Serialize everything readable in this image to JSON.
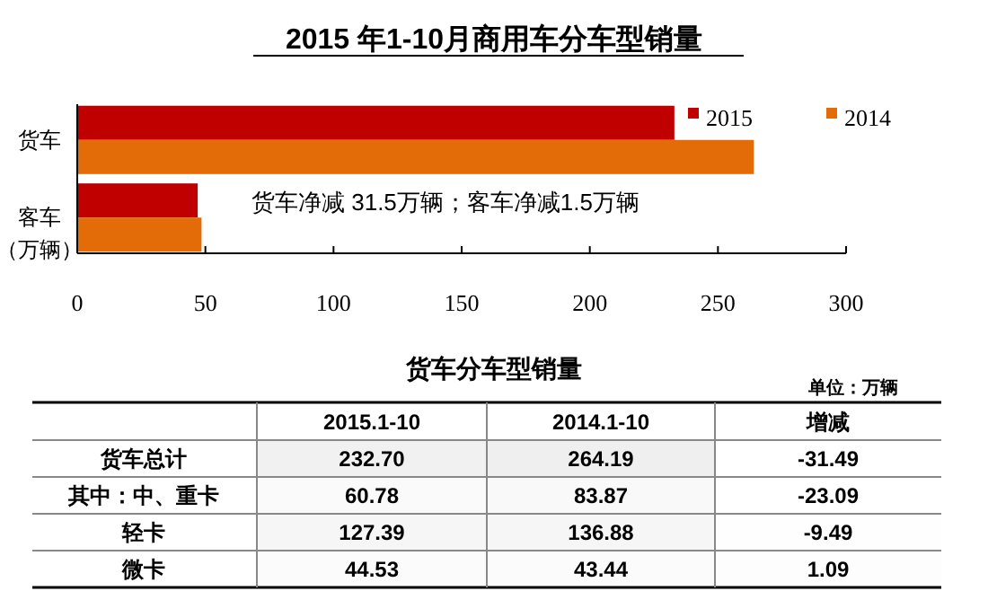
{
  "chart_data": [
    {
      "type": "bar",
      "orientation": "horizontal",
      "title": "2015 年1-10月商用车分车型销量",
      "ylabel": "（万辆）",
      "categories": [
        "货车",
        "客车"
      ],
      "series": [
        {
          "name": "2015",
          "color": "#c00000",
          "values": [
            233,
            47
          ]
        },
        {
          "name": "2014",
          "color": "#e36c09",
          "values": [
            264,
            48.5
          ]
        }
      ],
      "xlim": [
        0,
        300
      ],
      "xticks": [
        0,
        50,
        100,
        150,
        200,
        250,
        300
      ],
      "legend": "top right",
      "grid": false,
      "annotations": [
        "货车净减 31.5万辆；客车净减1.5万辆"
      ]
    },
    {
      "type": "heatmap",
      "title": "货车分车型销量",
      "annotations": [
        "单位：万辆"
      ],
      "categories": [
        "2015.1-10",
        "2014.1-10",
        "增减"
      ],
      "y_categories": [
        "货车总计",
        "其中：中、重卡",
        "轻卡",
        "微卡"
      ],
      "cells": [
        [
          232.7,
          264.19,
          -31.49
        ],
        [
          60.78,
          83.87,
          -23.09
        ],
        [
          127.39,
          136.88,
          -9.49
        ],
        [
          44.53,
          43.44,
          1.09
        ]
      ],
      "cell_labels": [
        [
          "232.70",
          "264.19",
          "-31.49"
        ],
        [
          "60.78",
          "83.87",
          "-23.09"
        ],
        [
          "127.39",
          "136.88",
          "-9.49"
        ],
        [
          "44.53",
          "43.44",
          "1.09"
        ]
      ]
    }
  ]
}
